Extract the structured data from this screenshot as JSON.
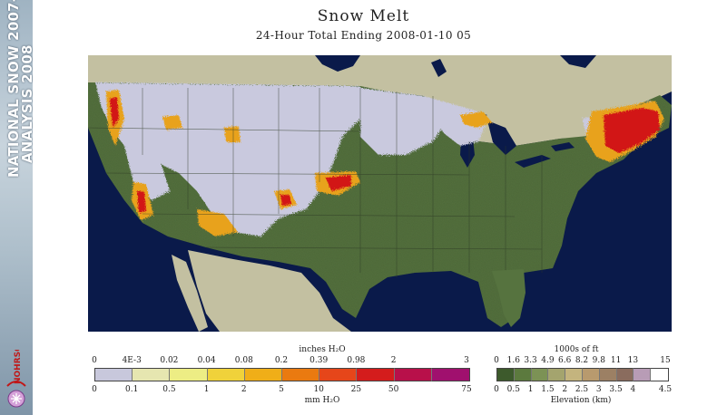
{
  "banner": {
    "line1": "NATIONAL SNOW 2007-",
    "line2": "ANALYSIS 2008",
    "logo_icon": "nohrsc-logo-icon"
  },
  "title": "Snow Melt",
  "subtitle": "24-Hour Total Ending 2008-01-10 05",
  "map": {
    "region": "Contiguous United States",
    "colors": {
      "ocean": "#0a1a4a",
      "land_outside": "#c3c0a1",
      "snow_free": "#56733f",
      "snow_no_melt": "#c9c9de",
      "melt_low": "#e8a21c",
      "melt_high": "#d21818"
    }
  },
  "melt_legend": {
    "top_label": "inches H₂O",
    "bottom_label": "mm H₂O",
    "inch_ticks": [
      "0",
      "4E-3",
      "0.02",
      "0.04",
      "0.08",
      "0.2",
      "0.39",
      "0.98",
      "2",
      "3"
    ],
    "mm_ticks": [
      "0",
      "0.1",
      "0.5",
      "1",
      "2",
      "5",
      "10",
      "25",
      "50",
      "75"
    ],
    "colors": [
      "#c8c8dc",
      "#e6e6b0",
      "#eded84",
      "#f0d23a",
      "#f0ae18",
      "#ea7a10",
      "#e6461a",
      "#d41c1c",
      "#b8104a",
      "#a0106e"
    ]
  },
  "elevation_legend": {
    "top_label": "1000s of ft",
    "bottom_label": "Elevation (km)",
    "ft_ticks": [
      "0",
      "1.6",
      "3.3",
      "4.9",
      "6.6",
      "8.2",
      "9.8",
      "11",
      "13",
      "15"
    ],
    "km_ticks": [
      "0",
      "0.5",
      "1",
      "1.5",
      "2",
      "2.5",
      "3",
      "3.5",
      "4",
      "4.5"
    ],
    "colors": [
      "#3d5a2c",
      "#5c7a3e",
      "#7c9255",
      "#a4a46e",
      "#c4b47e",
      "#b89a6e",
      "#9c8064",
      "#8a6c5e",
      "#b89cb6",
      "#ffffff"
    ]
  }
}
